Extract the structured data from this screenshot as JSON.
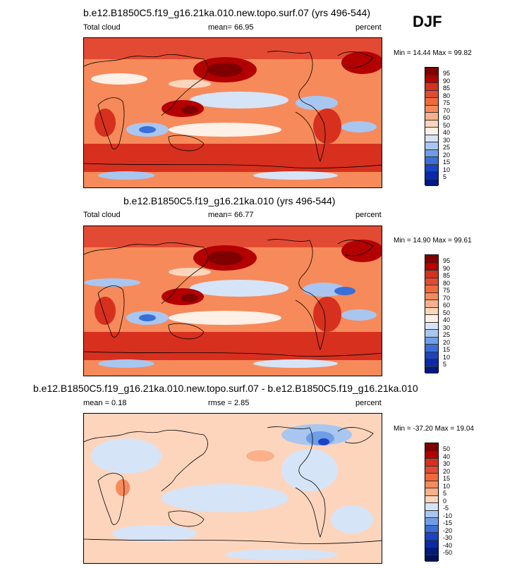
{
  "season": "DJF",
  "panels": [
    {
      "title": "b.e12.B1850C5.f19_g16.21ka.010.new.topo.surf.07 (yrs 496-544)",
      "left_label": "Total cloud",
      "center_label": "mean=  66.95",
      "units": "percent",
      "minmax": "Min =  14.44 Max =  99.82"
    },
    {
      "title": "b.e12.B1850C5.f19_g16.21ka.010 (yrs 496-544)",
      "left_label": "Total cloud",
      "center_label": "mean=  66.77",
      "units": "percent",
      "minmax": "Min =  14.90 Max =  99.61"
    },
    {
      "title": "b.e12.B1850C5.f19_g16.21ka.010.new.topo.surf.07 - b.e12.B1850C5.f19_g16.21ka.010",
      "left_label": "mean =   0.18",
      "center_label": "rmse =   2.85",
      "units": "percent",
      "minmax": "Min = -37.20 Max =  19.04"
    }
  ],
  "colorbars": {
    "abs": {
      "labels": [
        "95",
        "90",
        "85",
        "80",
        "75",
        "70",
        "60",
        "50",
        "40",
        "30",
        "25",
        "20",
        "15",
        "10",
        "5"
      ],
      "colors": [
        "#7f0000",
        "#b30000",
        "#d7301f",
        "#e34a33",
        "#f16a3a",
        "#f78a5a",
        "#fbb08a",
        "#fdd5bd",
        "#fdf0e6",
        "#d6e4f7",
        "#a8c6f0",
        "#6f9ee6",
        "#3a6fd8",
        "#1a44c4",
        "#0a2aa8",
        "#001a80"
      ]
    },
    "diff": {
      "labels": [
        "50",
        "40",
        "30",
        "20",
        "15",
        "10",
        "5",
        "0",
        "-5",
        "-10",
        "-15",
        "-20",
        "-30",
        "-40",
        "-50"
      ],
      "colors": [
        "#7f0000",
        "#b30000",
        "#d7301f",
        "#e34a33",
        "#f16a3a",
        "#f78a5a",
        "#fbb08a",
        "#fdd5bd",
        "#d6e4f7",
        "#a8c6f0",
        "#6f9ee6",
        "#3a6fd8",
        "#1a44c4",
        "#0a2aa8",
        "#001a80",
        "#00105a"
      ]
    }
  },
  "chart_data": [
    {
      "type": "heatmap",
      "title": "b.e12.B1850C5.f19_g16.21ka.010.new.topo.surf.07 (yrs 496-544)",
      "variable": "Total cloud",
      "units": "percent",
      "mean": 66.95,
      "min": 14.44,
      "max": 99.82,
      "contour_levels": [
        5,
        10,
        15,
        20,
        25,
        30,
        40,
        50,
        60,
        70,
        75,
        80,
        85,
        90,
        95
      ]
    },
    {
      "type": "heatmap",
      "title": "b.e12.B1850C5.f19_g16.21ka.010 (yrs 496-544)",
      "variable": "Total cloud",
      "units": "percent",
      "mean": 66.77,
      "min": 14.9,
      "max": 99.61,
      "contour_levels": [
        5,
        10,
        15,
        20,
        25,
        30,
        40,
        50,
        60,
        70,
        75,
        80,
        85,
        90,
        95
      ]
    },
    {
      "type": "heatmap",
      "title": "b.e12.B1850C5.f19_g16.21ka.010.new.topo.surf.07 - b.e12.B1850C5.f19_g16.21ka.010",
      "units": "percent",
      "mean": 0.18,
      "rmse": 2.85,
      "min": -37.2,
      "max": 19.04,
      "contour_levels": [
        -50,
        -40,
        -30,
        -20,
        -15,
        -10,
        -5,
        0,
        5,
        10,
        15,
        20,
        30,
        40,
        50
      ]
    }
  ]
}
